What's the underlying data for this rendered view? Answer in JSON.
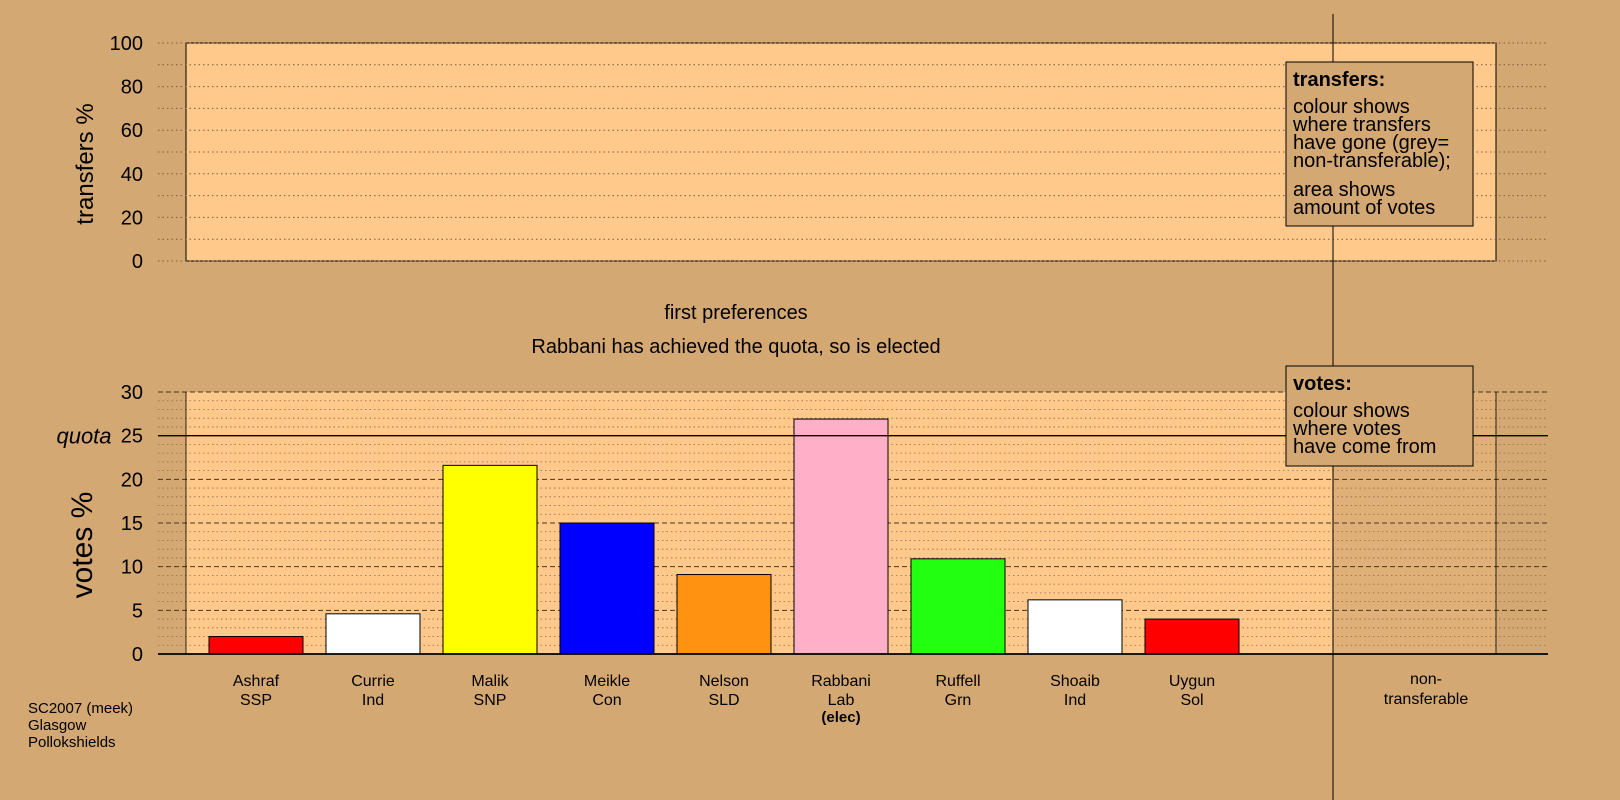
{
  "colors": {
    "page_bg": "#d4a873",
    "plot_bg": "#ffc98b",
    "nontransferable_bg": "#d4a873"
  },
  "chart_data": [
    {
      "type": "bar",
      "role": "transfers",
      "ylabel": "transfers %",
      "ylim": [
        0,
        100
      ],
      "yticks": [
        0,
        20,
        40,
        60,
        80,
        100
      ],
      "grid": true,
      "values": [],
      "legend": {
        "placement": "top-right",
        "title": "transfers:",
        "lines_a": [
          "colour shows",
          "where transfers",
          "have gone (grey=",
          "non-transferable);"
        ],
        "lines_b": [
          "area shows",
          "amount of votes"
        ]
      }
    },
    {
      "type": "bar",
      "role": "votes",
      "stage_label": "first preferences",
      "message": "Rabbani has achieved the quota, so is elected",
      "ylabel": "votes %",
      "ylim": [
        0,
        30
      ],
      "yticks": [
        0,
        5,
        10,
        15,
        20,
        25,
        30
      ],
      "quota": 25,
      "quota_label": "quota",
      "grid": true,
      "categories": [
        {
          "name": "Ashraf",
          "party": "SSP",
          "value": 2.0,
          "color": "#ff0000"
        },
        {
          "name": "Currie",
          "party": "Ind",
          "value": 4.6,
          "color": "#ffffff"
        },
        {
          "name": "Malik",
          "party": "SNP",
          "value": 21.6,
          "color": "#ffff00"
        },
        {
          "name": "Meikle",
          "party": "Con",
          "value": 15.0,
          "color": "#0000ff"
        },
        {
          "name": "Nelson",
          "party": "SLD",
          "value": 9.1,
          "color": "#ff9210"
        },
        {
          "name": "Rabbani",
          "party": "Lab",
          "value": 26.9,
          "color": "#ffb0c8",
          "status": "(elec)"
        },
        {
          "name": "Ruffell",
          "party": "Grn",
          "value": 10.9,
          "color": "#22ff11"
        },
        {
          "name": "Shoaib",
          "party": "Ind",
          "value": 6.2,
          "color": "#ffffff"
        },
        {
          "name": "Uygun",
          "party": "Sol",
          "value": 4.0,
          "color": "#ff0000"
        }
      ],
      "nontransferable": {
        "label_1": "non-",
        "label_2": "transferable",
        "value": 0
      },
      "legend": {
        "placement": "top-right",
        "title": "votes:",
        "lines": [
          "colour shows",
          "where votes",
          "have come from"
        ]
      }
    }
  ],
  "footer": {
    "line1": "SC2007 (meek)",
    "line2": "Glasgow",
    "line3": "Pollokshields"
  }
}
